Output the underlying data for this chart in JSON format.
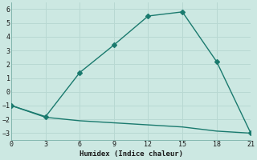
{
  "line1_x": [
    0,
    3,
    6,
    9,
    12,
    15,
    18,
    21
  ],
  "line1_y": [
    -1,
    -1.8,
    1.4,
    3.4,
    5.5,
    5.8,
    2.2,
    -3.0
  ],
  "line2_x": [
    0,
    3,
    6,
    9,
    12,
    15,
    18,
    21
  ],
  "line2_y": [
    -1.0,
    -1.85,
    -2.1,
    -2.25,
    -2.4,
    -2.55,
    -2.85,
    -3.0
  ],
  "line_color": "#1a7a6e",
  "bg_color": "#cce8e2",
  "grid_color": "#b8d8d2",
  "xlabel": "Humidex (Indice chaleur)",
  "xlim": [
    0,
    21
  ],
  "ylim": [
    -3.5,
    6.5
  ],
  "xticks": [
    0,
    3,
    6,
    9,
    12,
    15,
    18,
    21
  ],
  "yticks": [
    -3,
    -2,
    -1,
    0,
    1,
    2,
    3,
    4,
    5,
    6
  ],
  "marker": "D",
  "marker_size": 3,
  "linewidth": 1.0
}
